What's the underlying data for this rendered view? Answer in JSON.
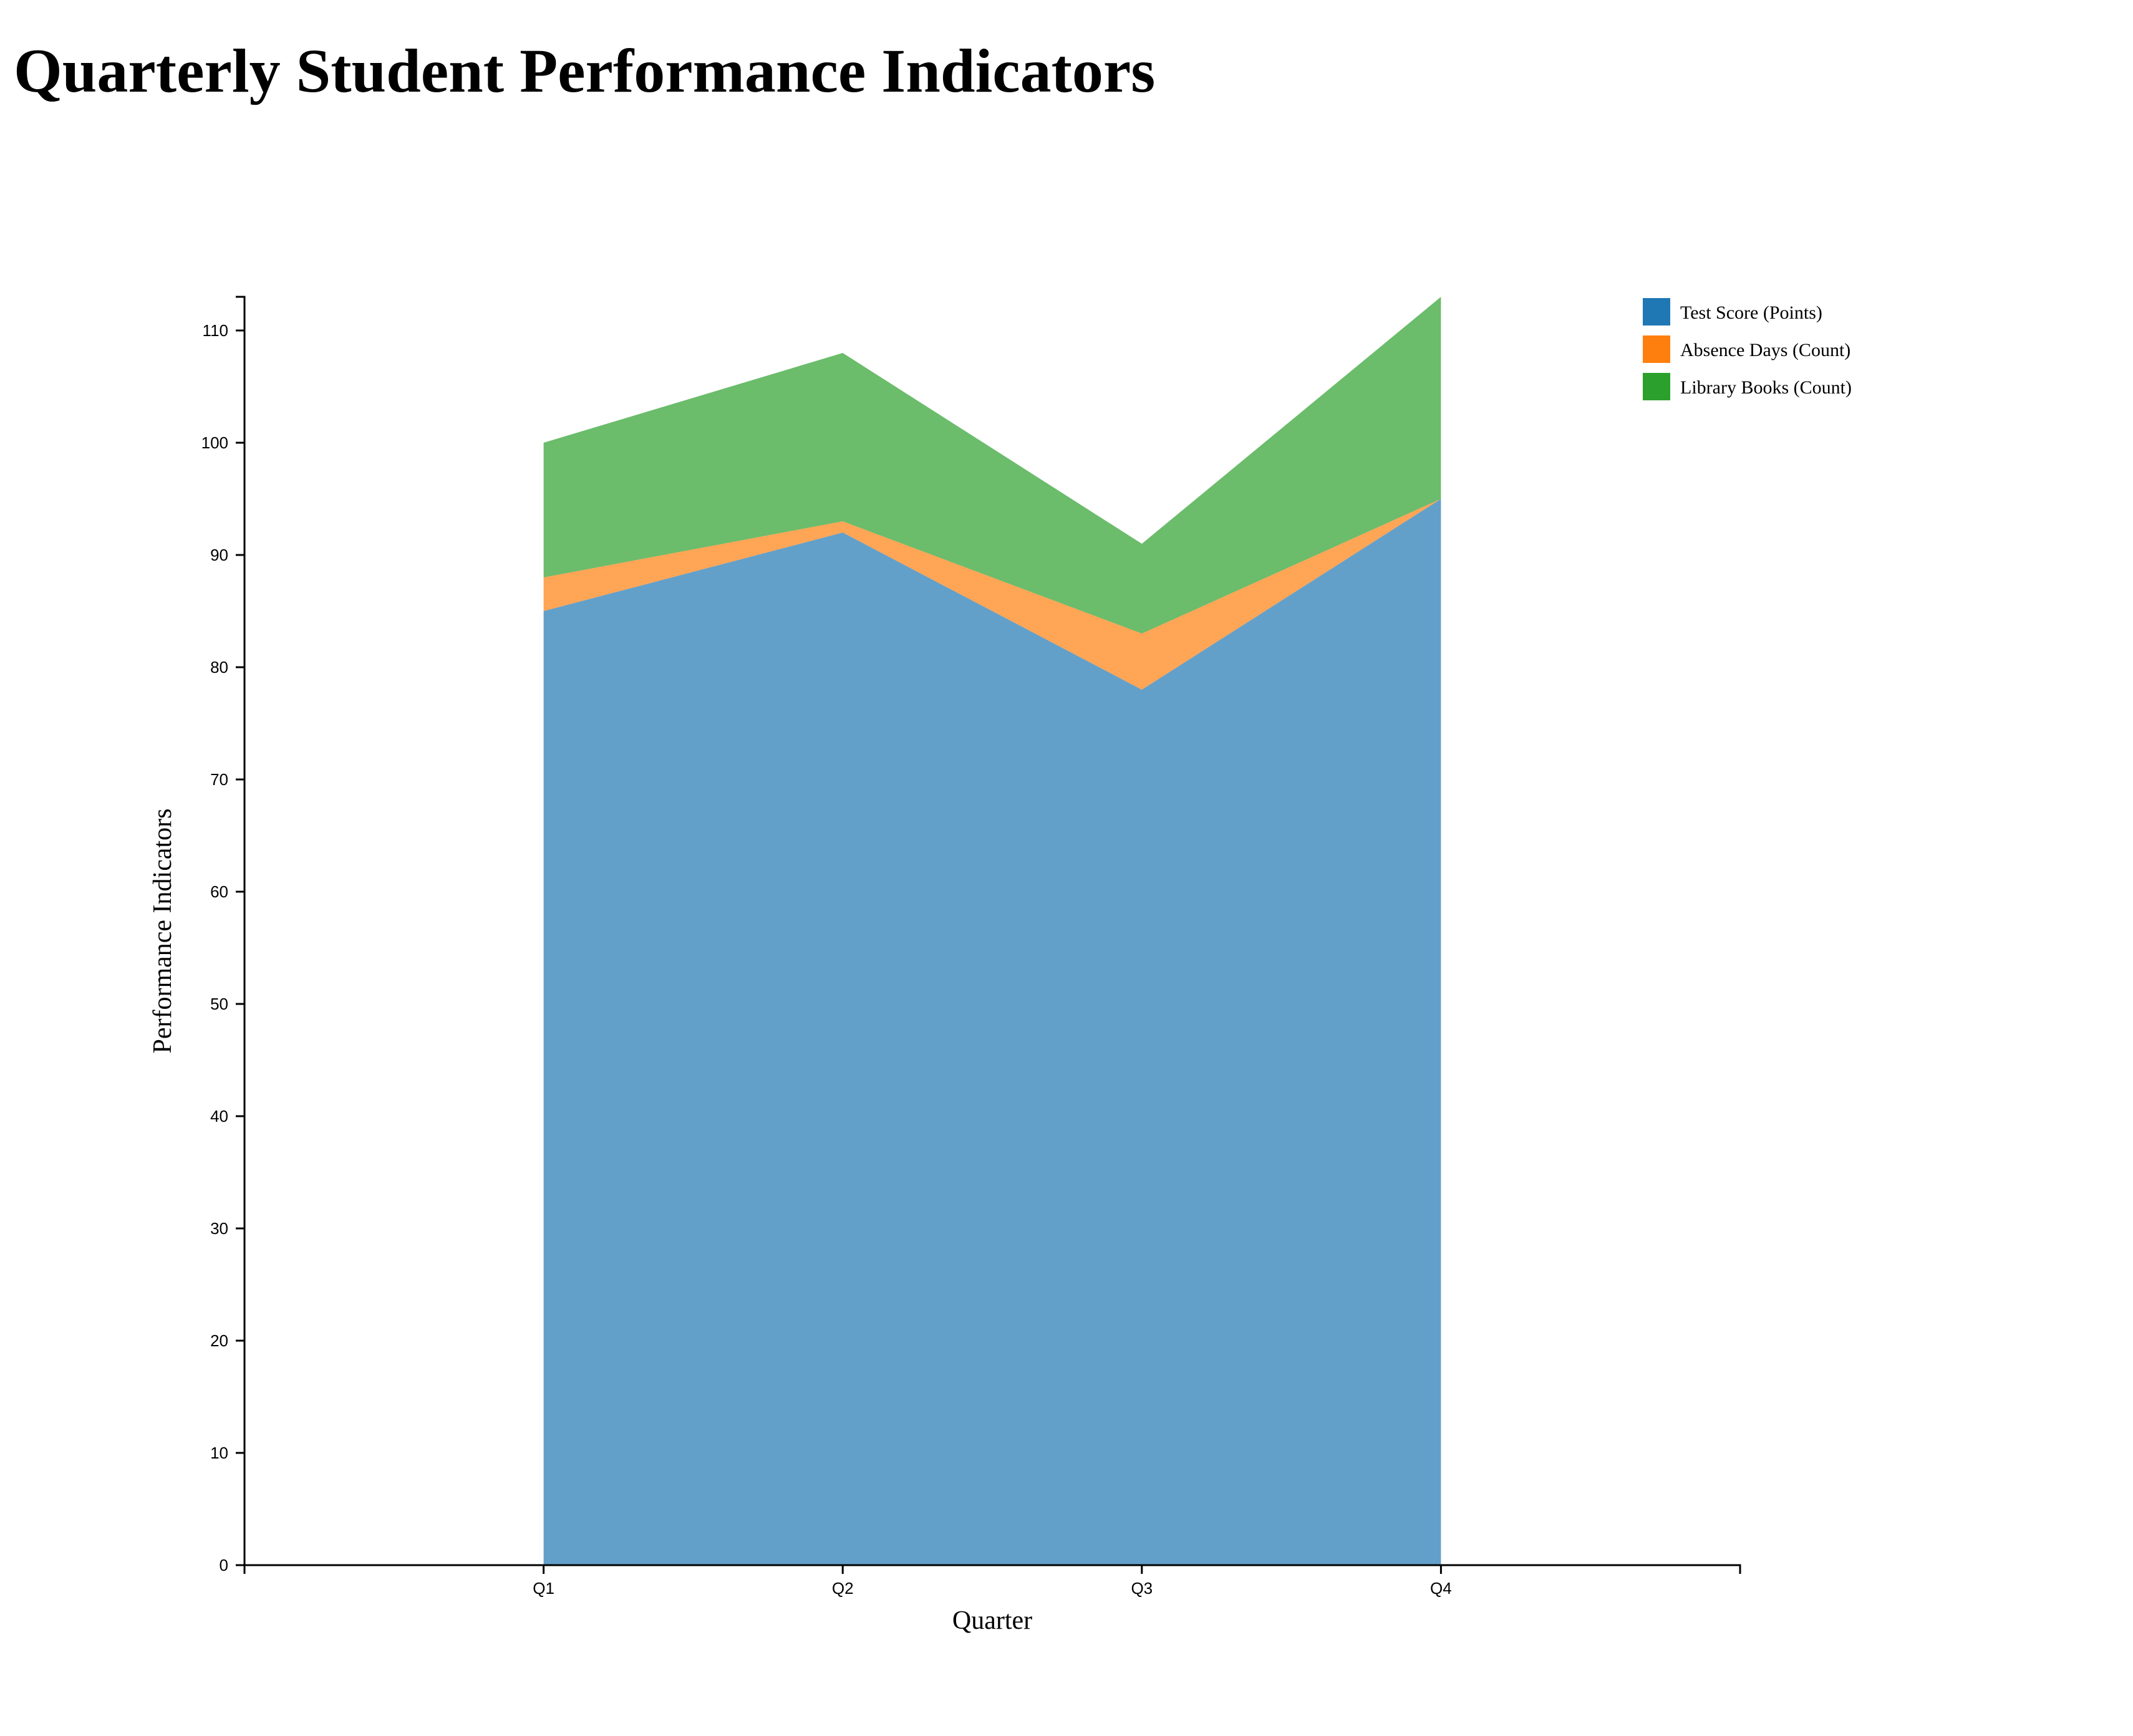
{
  "chart_data": {
    "type": "area",
    "stacked": true,
    "title": "Quarterly Student Performance Indicators",
    "xlabel": "Quarter",
    "ylabel": "Performance Indicators",
    "categories": [
      "Q1",
      "Q2",
      "Q3",
      "Q4"
    ],
    "series": [
      {
        "name": "Test Score (Points)",
        "values": [
          85,
          92,
          78,
          95
        ],
        "color": "#1f77b4"
      },
      {
        "name": "Absence Days (Count)",
        "values": [
          3,
          1,
          5,
          0
        ],
        "color": "#ff7f0e"
      },
      {
        "name": "Library Books (Count)",
        "values": [
          12,
          15,
          8,
          18
        ],
        "color": "#2ca02c"
      }
    ],
    "ylim": [
      0,
      113
    ],
    "yticks": [
      0,
      10,
      20,
      30,
      40,
      50,
      60,
      70,
      80,
      90,
      100,
      110
    ],
    "grid": false,
    "legend_position": "top-right"
  }
}
